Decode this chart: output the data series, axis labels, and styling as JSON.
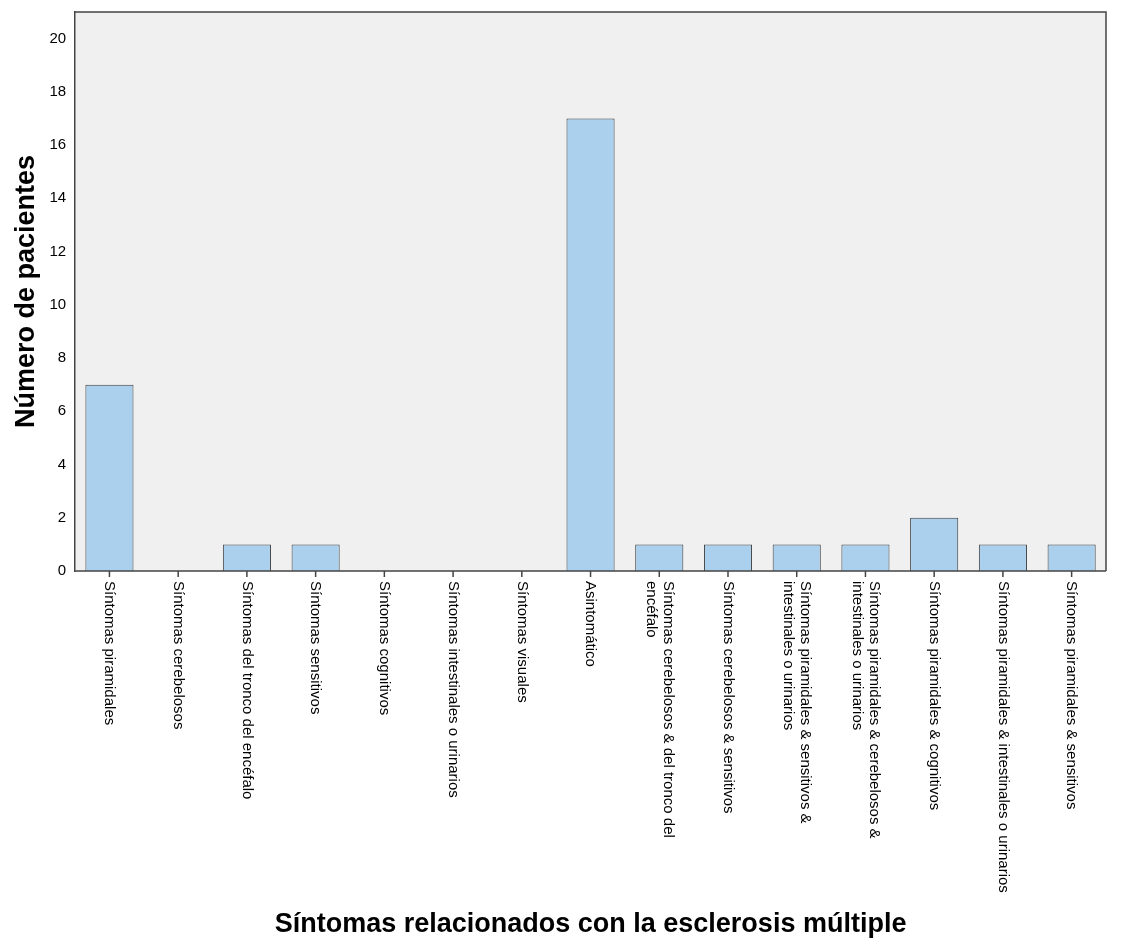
{
  "chart_data": {
    "type": "bar",
    "xlabel": "Síntomas relacionados con la esclerosis múltiple",
    "ylabel": "Número de pacientes",
    "categories": [
      "Síntomas piramidales",
      "Síntomas cerebelosos",
      "Síntomas del tronco del encéfalo",
      "Síntomas sensitivos",
      "Síntomas cognitivos",
      "Síntomas intestinales o urinarios",
      "Síntomas visuales",
      "Asintomático",
      "Síntomas cerebelosos & del tronco del encéfalo",
      "Síntomas cerebelosos & sensitivos",
      "Síntomas piramidales & sensitivos & intestinales o urinarios",
      "Síntomas piramidales & cerebelosos & intestinales o urinarios",
      "Síntomas piramidales & cognitivos",
      "Síntomas piramidales & intestinales o urinarios",
      "Síntomas piramidales & sensitivos"
    ],
    "values": [
      7,
      0,
      1,
      1,
      0,
      0,
      0,
      17,
      1,
      1,
      1,
      1,
      2,
      1,
      1
    ],
    "color": "#aad0ee",
    "ylim": [
      0,
      21
    ],
    "yticks": [
      0,
      2,
      4,
      6,
      8,
      10,
      12,
      14,
      16,
      18,
      20
    ],
    "grid": false,
    "legend": false
  }
}
